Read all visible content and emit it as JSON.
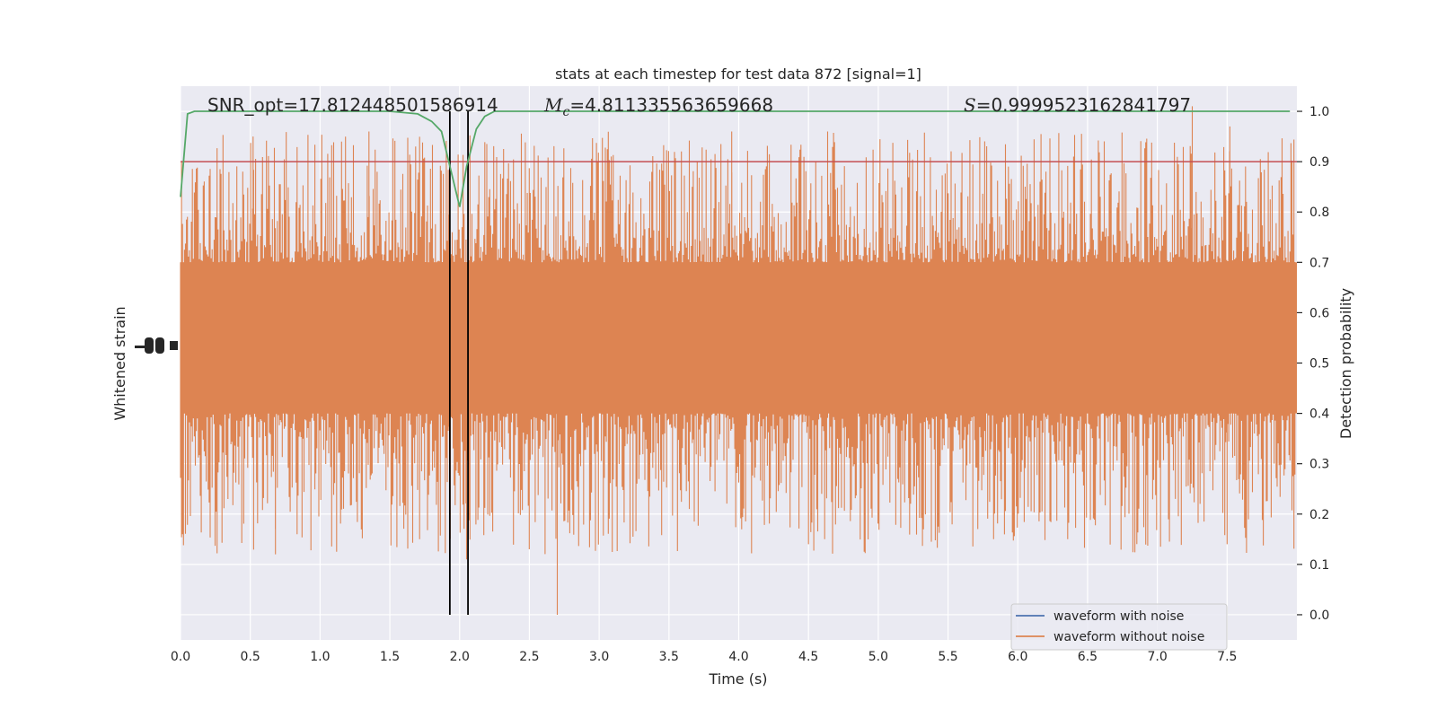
{
  "chart_data": {
    "type": "line",
    "title": "stats at each timestep for test data 872 [signal=1]",
    "xlabel": "Time (s)",
    "ylabel_left": "Whitened strain",
    "ylabel_right": "Detection probability",
    "xlim": [
      0.0,
      8.0
    ],
    "ylim_right": [
      -0.05,
      1.05
    ],
    "x_ticks": [
      0.0,
      0.5,
      1.0,
      1.5,
      2.0,
      2.5,
      3.0,
      3.5,
      4.0,
      4.5,
      5.0,
      5.5,
      6.0,
      6.5,
      7.0,
      7.5
    ],
    "x_tick_labels": [
      "0.0",
      "0.5",
      "1.0",
      "1.5",
      "2.0",
      "2.5",
      "3.0",
      "3.5",
      "4.0",
      "4.5",
      "5.0",
      "5.5",
      "6.0",
      "6.5",
      "7.0",
      "7.5"
    ],
    "y_right_ticks": [
      0.0,
      0.1,
      0.2,
      0.3,
      0.4,
      0.5,
      0.6,
      0.7,
      0.8,
      0.9,
      1.0
    ],
    "y_right_tick_labels": [
      "0.0",
      "0.1",
      "0.2",
      "0.3",
      "0.4",
      "0.5",
      "0.6",
      "0.7",
      "0.8",
      "0.9",
      "1.0"
    ],
    "annotations": {
      "snr": "SNR_opt=17.812448501586914",
      "mc_symbol": "M",
      "mc_sub": "c",
      "mc_value": "=4.811335563659668",
      "s_symbol": "S",
      "s_value": "=0.9999523162841797"
    },
    "threshold": {
      "value": 0.9,
      "color": "#c44e52"
    },
    "event_markers": [
      1.93,
      2.06
    ],
    "series": [
      {
        "name": "waveform with noise",
        "color": "#4c72b0",
        "values": []
      },
      {
        "name": "waveform without noise",
        "color": "#dd8452",
        "strain_envelope": {
          "core_low": 0.4,
          "core_high": 0.7,
          "max_upper": 0.96,
          "min_lower": 0.0
        }
      },
      {
        "name": "detection probability",
        "color": "#55a868",
        "x": [
          0.0,
          0.05,
          0.1,
          0.3,
          1.5,
          1.7,
          1.8,
          1.87,
          1.94,
          2.0,
          2.05,
          2.12,
          2.18,
          2.25,
          2.4,
          7.95
        ],
        "values": [
          0.83,
          0.995,
          1.0,
          1.0,
          1.0,
          0.995,
          0.98,
          0.96,
          0.88,
          0.81,
          0.89,
          0.965,
          0.99,
          1.0,
          1.0,
          1.0
        ]
      }
    ],
    "legend": {
      "position": "lower-right",
      "entries": [
        "waveform with noise",
        "waveform without noise"
      ]
    }
  }
}
